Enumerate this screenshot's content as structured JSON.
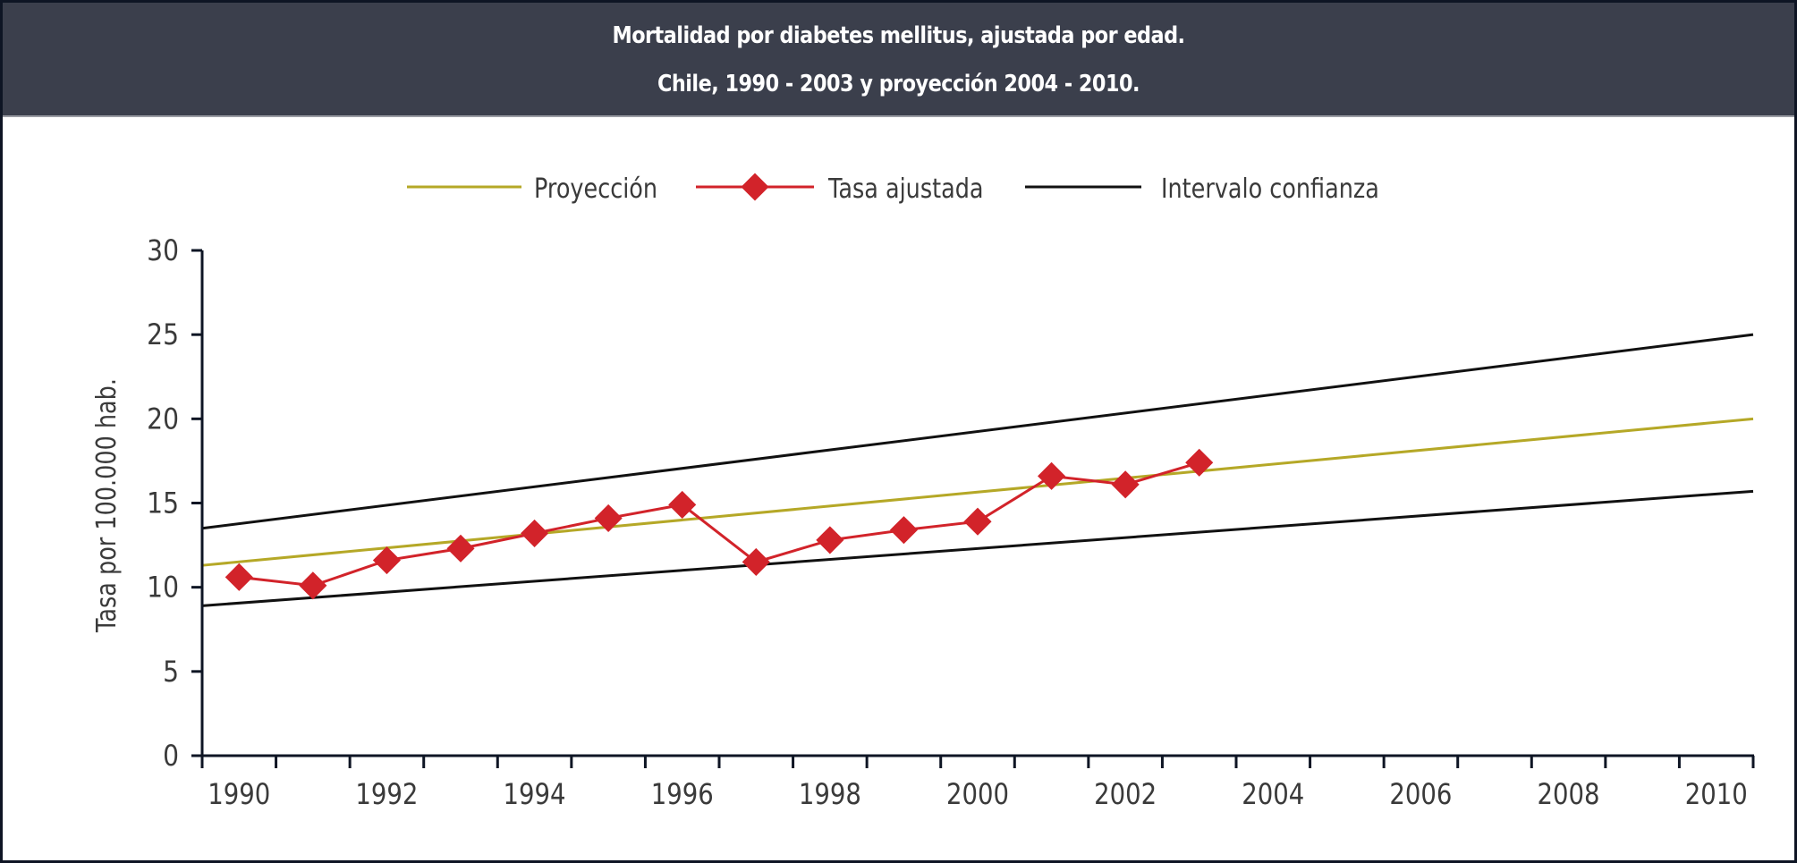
{
  "header": {
    "title_line1": "Mortalidad por diabetes mellitus, ajustada por edad.",
    "title_line2": "Chile, 1990 - 2003 y proyección 2004 - 2010."
  },
  "colors": {
    "header_bg": "#3b3f4c",
    "projection": "#b5a827",
    "rate": "#d2232a",
    "interval": "#111111",
    "axis": "#0e1524"
  },
  "chart_data": {
    "type": "line",
    "title": "Mortalidad por diabetes mellitus, ajustada por edad. Chile, 1990 - 2003 y proyección 2004 - 2010.",
    "xlabel": "",
    "ylabel": "Tasa por 100.000 hab.",
    "ylim": [
      0,
      30
    ],
    "yticks": [
      0,
      5,
      10,
      15,
      20,
      25,
      30
    ],
    "categories": [
      "1990",
      "1991",
      "1992",
      "1993",
      "1994",
      "1995",
      "1996",
      "1997",
      "1998",
      "1999",
      "2000",
      "2001",
      "2002",
      "2003",
      "2004",
      "2005",
      "2006",
      "2007",
      "2008",
      "2009",
      "2010"
    ],
    "xtick_labels": [
      "1990",
      "1992",
      "1994",
      "1996",
      "1998",
      "2000",
      "2002",
      "2004",
      "2006",
      "2008",
      "2010"
    ],
    "grid": false,
    "legend_position": "top-center",
    "series": [
      {
        "name": "Proyección",
        "kind": "line",
        "from": {
          "x": "1990-left-edge",
          "y": 11.3
        },
        "to": {
          "x": "2010-right-edge",
          "y": 20.0
        }
      },
      {
        "name": "Tasa ajustada",
        "kind": "line-markers",
        "x": [
          "1990",
          "1991",
          "1992",
          "1993",
          "1994",
          "1995",
          "1996",
          "1997",
          "1998",
          "1999",
          "2000",
          "2001",
          "2002",
          "2003"
        ],
        "values": [
          10.6,
          10.1,
          11.6,
          12.3,
          13.2,
          14.1,
          14.9,
          11.5,
          12.8,
          13.4,
          13.9,
          16.6,
          16.1,
          17.4
        ]
      },
      {
        "name": "Intervalo confianza (superior)",
        "kind": "line",
        "from": {
          "x": "1990-left-edge",
          "y": 13.5
        },
        "to": {
          "x": "2010-right-edge",
          "y": 25.0
        }
      },
      {
        "name": "Intervalo confianza (inferior)",
        "kind": "line",
        "from": {
          "x": "1990-left-edge",
          "y": 8.9
        },
        "to": {
          "x": "2010-right-edge",
          "y": 15.7
        }
      }
    ],
    "legend": [
      {
        "label": "Proyección",
        "style": "projection"
      },
      {
        "label": "Tasa ajustada",
        "style": "rate"
      },
      {
        "label": "Intervalo confianza",
        "style": "interval"
      }
    ]
  }
}
